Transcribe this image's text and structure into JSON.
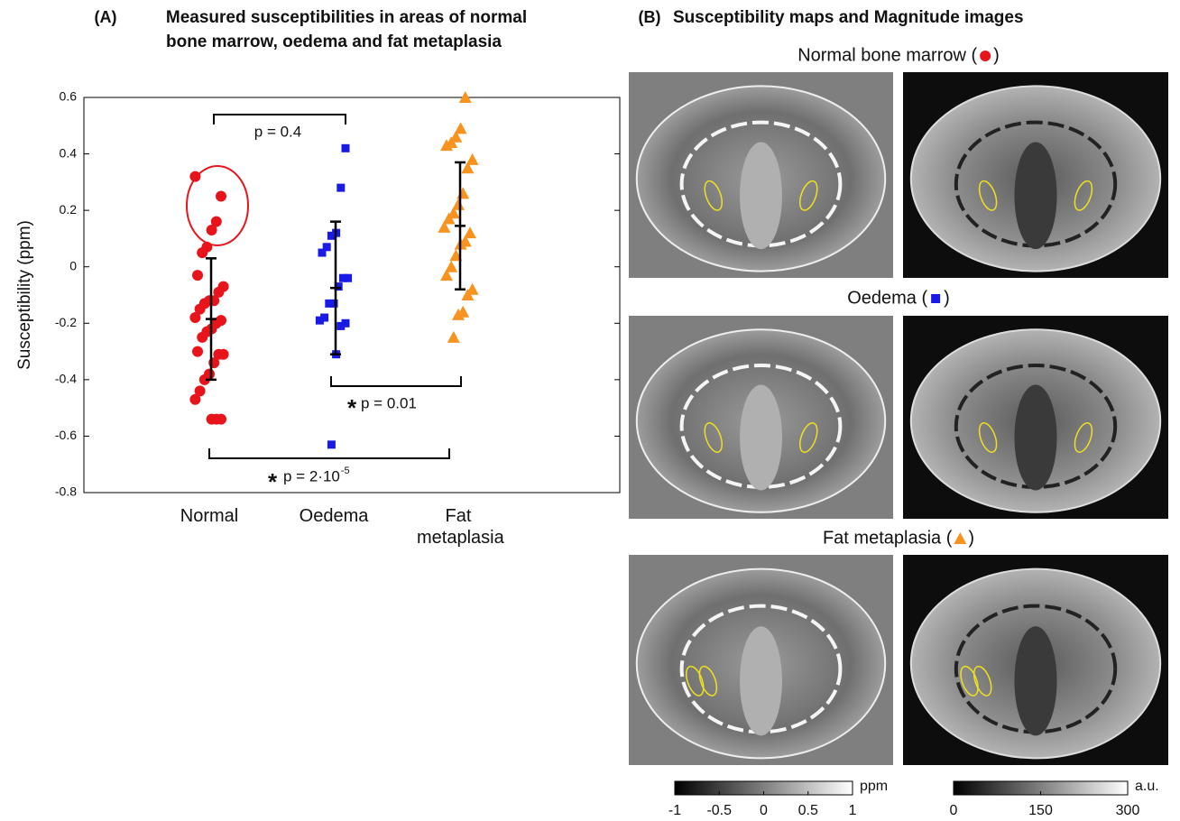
{
  "chart_data": {
    "type": "grouped-scatter",
    "panel_label": "(A)",
    "title_lines": [
      "Measured susceptibilities in areas of normal",
      "bone marrow, oedema and fat metaplasia"
    ],
    "ylabel": "Susceptibility (ppm)",
    "ylim": [
      -0.8,
      0.6
    ],
    "yticks": [
      -0.8,
      -0.6,
      -0.4,
      -0.2,
      0,
      0.2,
      0.4,
      0.6
    ],
    "categories": [
      "Normal",
      "Oedema",
      "Fat metaplasia"
    ],
    "series": [
      {
        "color": "#e8141c",
        "marker": "circle",
        "values": [
          0.32,
          0.25,
          0.16,
          0.13,
          0.07,
          0.05,
          -0.03,
          -0.07,
          -0.09,
          -0.12,
          -0.12,
          -0.13,
          -0.15,
          -0.18,
          -0.19,
          -0.2,
          -0.22,
          -0.23,
          -0.25,
          -0.3,
          -0.31,
          -0.31,
          -0.34,
          -0.38,
          -0.4,
          -0.44,
          -0.47,
          -0.54,
          -0.54,
          -0.54
        ],
        "mean": -0.185,
        "sd": 0.215
      },
      {
        "color": "#1a1ae6",
        "marker": "square",
        "values": [
          0.42,
          0.28,
          0.12,
          0.11,
          0.07,
          0.05,
          -0.04,
          -0.04,
          -0.07,
          -0.13,
          -0.13,
          -0.18,
          -0.19,
          -0.2,
          -0.21,
          -0.31,
          -0.63
        ],
        "mean": -0.075,
        "sd": 0.235
      },
      {
        "color": "#f7931e",
        "marker": "triangle",
        "values": [
          0.6,
          0.49,
          0.46,
          0.44,
          0.43,
          0.38,
          0.35,
          0.26,
          0.22,
          0.19,
          0.17,
          0.14,
          0.12,
          0.09,
          0.08,
          0.04,
          0.0,
          -0.03,
          -0.08,
          -0.1,
          -0.16,
          -0.17,
          -0.25
        ],
        "mean": 0.145,
        "sd": 0.225
      }
    ],
    "annotations": [
      {
        "text": "p = 0.4"
      },
      {
        "marker": "*",
        "text": "p = 0.01"
      },
      {
        "marker": "*",
        "text": "p = 2·10",
        "superscript": "-5"
      }
    ]
  },
  "panel_b": {
    "label": "(B)",
    "title": "Susceptibility maps and Magnitude images",
    "rows": [
      {
        "title_prefix": "Normal bone marrow (",
        "title_suffix": ")"
      },
      {
        "title_prefix": "Oedema (",
        "title_suffix": ")"
      },
      {
        "title_prefix": "Fat metaplasia (",
        "title_suffix": ")"
      }
    ],
    "colorbars": [
      {
        "unit": "ppm",
        "lim": [
          -1,
          1
        ],
        "ticks": [
          -1,
          -0.5,
          0,
          0.5,
          1
        ]
      },
      {
        "unit": "a.u.",
        "lim": [
          0,
          300
        ],
        "ticks": [
          0,
          150,
          300
        ]
      }
    ]
  }
}
